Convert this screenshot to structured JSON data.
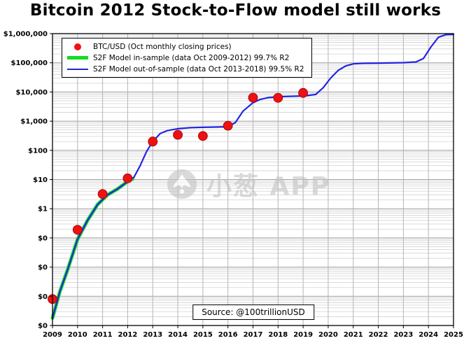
{
  "title": "Bitcoin 2012 Stock-to-Flow model still works",
  "source_label": "Source: @100trillionUSD",
  "watermark": {
    "text": "小葱 APP"
  },
  "legend": [
    {
      "marker": "dot",
      "color": "#ee1111",
      "label": "BTC/USD (Oct monthly closing prices)"
    },
    {
      "marker": "thick-line",
      "color": "#11dd22",
      "label": "S2F Model in-sample (data Oct 2009-2012) 99.7% R2"
    },
    {
      "marker": "thin-line",
      "color": "#2424e0",
      "label": "S2F Model out-of-sample (data Oct 2013-2018) 99.5% R2"
    }
  ],
  "chart_data": {
    "type": "line",
    "title": "Bitcoin 2012 Stock-to-Flow model still works",
    "xlabel": "",
    "ylabel": "",
    "grid": {
      "minor_color": "#d2d2d2",
      "major_color": "#9e9e9e",
      "vertical_color": "#b5b5b5"
    },
    "x_axis": {
      "min": 2009,
      "max": 2025,
      "ticks": [
        2009,
        2010,
        2011,
        2012,
        2013,
        2014,
        2015,
        2016,
        2017,
        2018,
        2019,
        2020,
        2021,
        2022,
        2023,
        2024,
        2025
      ]
    },
    "y_axis": {
      "scale": "log",
      "min": 0.0001,
      "max": 1000000,
      "tick_labels": [
        {
          "value": 1000000,
          "label": "$1,000,000"
        },
        {
          "value": 100000,
          "label": "$100,000"
        },
        {
          "value": 10000,
          "label": "$10,000"
        },
        {
          "value": 1000,
          "label": "$1,000"
        },
        {
          "value": 100,
          "label": "$100"
        },
        {
          "value": 10,
          "label": "$10"
        },
        {
          "value": 1,
          "label": "$1"
        },
        {
          "value": 0.1,
          "label": "$0"
        },
        {
          "value": 0.01,
          "label": "$0"
        },
        {
          "value": 0.001,
          "label": "$0"
        },
        {
          "value": 0.0001,
          "label": "$0"
        }
      ]
    },
    "series": [
      {
        "id": "s2f-insample-line",
        "name": "S2F Model in-sample (data Oct 2009-2012) 99.7% R2",
        "type": "line",
        "color": "#11dd22",
        "width": 5,
        "points": [
          [
            2009,
            0.00018
          ],
          [
            2009.3,
            0.0015
          ],
          [
            2009.6,
            0.008
          ],
          [
            2010,
            0.09
          ],
          [
            2010.4,
            0.4
          ],
          [
            2010.8,
            1.4
          ],
          [
            2011.2,
            3.0
          ],
          [
            2011.6,
            4.8
          ],
          [
            2012,
            8.5
          ],
          [
            2012.2,
            10.5
          ]
        ]
      },
      {
        "id": "s2f-outsample-line",
        "name": "S2F Model out-of-sample (data Oct 2013-2018) 99.5% R2",
        "type": "line",
        "color": "#2424e0",
        "width": 2.2,
        "points": [
          [
            2009,
            0.00018
          ],
          [
            2009.3,
            0.0015
          ],
          [
            2009.6,
            0.008
          ],
          [
            2010,
            0.09
          ],
          [
            2010.4,
            0.4
          ],
          [
            2010.8,
            1.4
          ],
          [
            2011.2,
            3.0
          ],
          [
            2011.6,
            4.8
          ],
          [
            2012,
            8.5
          ],
          [
            2012.25,
            12
          ],
          [
            2012.5,
            30
          ],
          [
            2012.75,
            90
          ],
          [
            2013,
            200
          ],
          [
            2013.3,
            380
          ],
          [
            2013.6,
            480
          ],
          [
            2014,
            550
          ],
          [
            2014.5,
            600
          ],
          [
            2015,
            615
          ],
          [
            2015.5,
            630
          ],
          [
            2016,
            645
          ],
          [
            2016.3,
            900
          ],
          [
            2016.6,
            2200
          ],
          [
            2017,
            4300
          ],
          [
            2017.3,
            5600
          ],
          [
            2017.6,
            6400
          ],
          [
            2018,
            6900
          ],
          [
            2018.5,
            7100
          ],
          [
            2019,
            7300
          ],
          [
            2019.5,
            8200
          ],
          [
            2019.8,
            14000
          ],
          [
            2020.1,
            30000
          ],
          [
            2020.4,
            55000
          ],
          [
            2020.7,
            78000
          ],
          [
            2021,
            92000
          ],
          [
            2021.4,
            96000
          ],
          [
            2022,
            98000
          ],
          [
            2023,
            101000
          ],
          [
            2023.5,
            107000
          ],
          [
            2023.8,
            140000
          ],
          [
            2024.1,
            350000
          ],
          [
            2024.4,
            750000
          ],
          [
            2024.7,
            920000
          ],
          [
            2025,
            940000
          ]
        ]
      },
      {
        "id": "btc-price-dots",
        "name": "BTC/USD (Oct monthly closing prices)",
        "type": "scatter",
        "color": "#ee1111",
        "width": 0,
        "points": [
          [
            2009,
            0.0008
          ],
          [
            2010,
            0.19
          ],
          [
            2011,
            3.2
          ],
          [
            2012,
            11
          ],
          [
            2013,
            200
          ],
          [
            2014,
            340
          ],
          [
            2015,
            310
          ],
          [
            2016,
            700
          ],
          [
            2017,
            6400
          ],
          [
            2018,
            6300
          ],
          [
            2019,
            9300
          ]
        ]
      }
    ]
  }
}
